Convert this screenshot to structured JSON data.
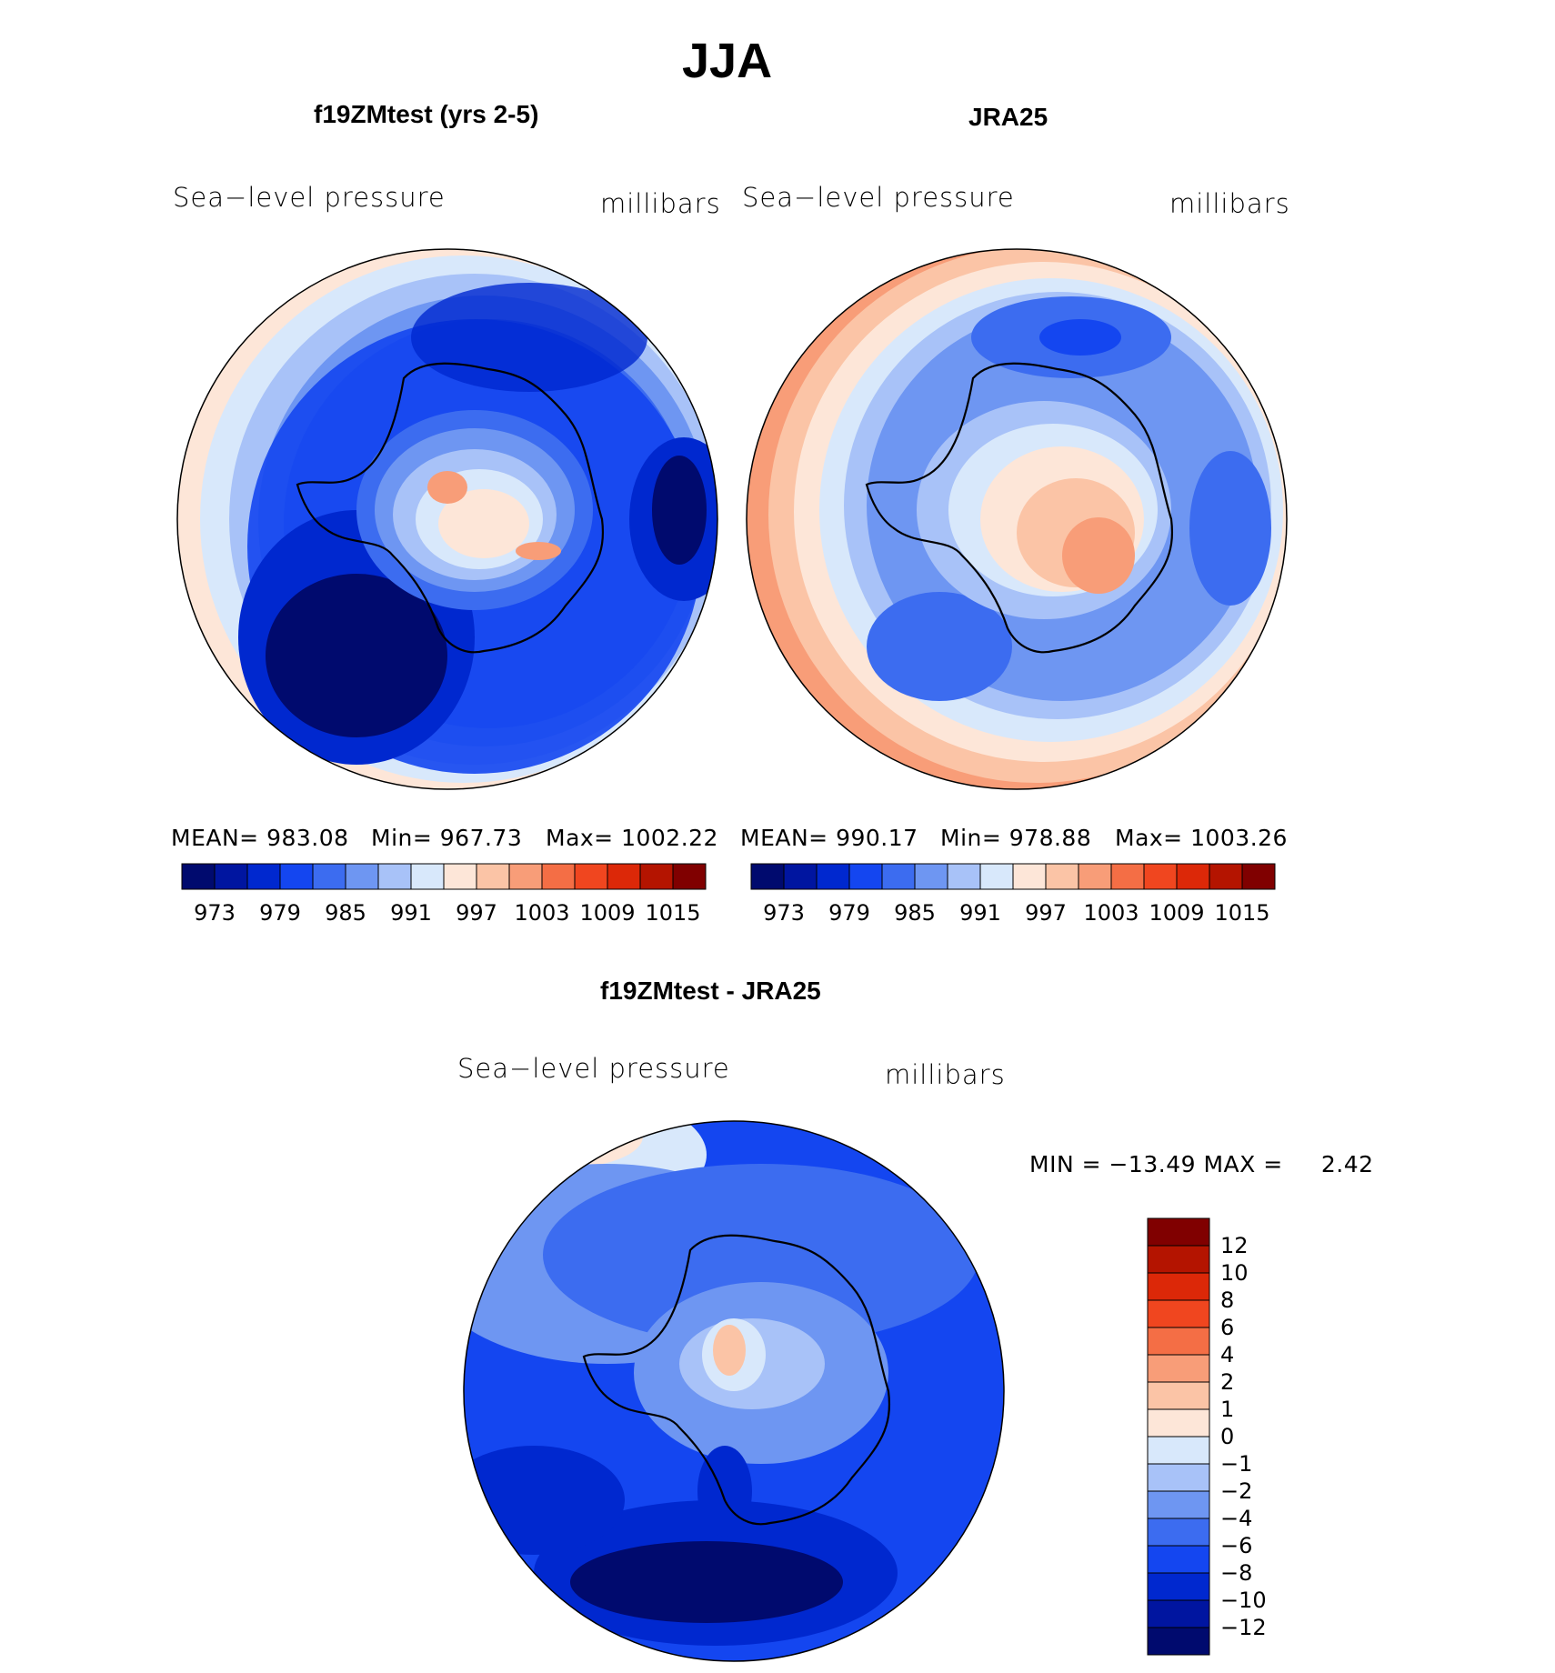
{
  "title": "JJA",
  "panels": [
    {
      "title": "f19ZMtest (yrs 2-5)",
      "var_label": "Sea−level pressure",
      "units": "millibars",
      "mean_text": "MEAN= 983.08",
      "min_text": "Min= 967.73",
      "max_text": "Max= 1002.22"
    },
    {
      "title": "JRA25",
      "var_label": "Sea−level pressure",
      "units": "millibars",
      "mean_text": "MEAN= 990.17",
      "min_text": "Min= 978.88",
      "max_text": "Max= 1003.26"
    }
  ],
  "diff_panel": {
    "title": "f19ZMtest - JRA25",
    "var_label": "Sea−level pressure",
    "units": "millibars",
    "minmax_text": "MIN = −13.49 MAX =     2.42"
  },
  "colorbar_main": {
    "colors": [
      "#000a6e",
      "#0015a0",
      "#0028cf",
      "#1446f0",
      "#3c6cf0",
      "#6e96f2",
      "#a8c2f8",
      "#d8e8fb",
      "#fde6d8",
      "#fbc4a6",
      "#f89d78",
      "#f46e45",
      "#f0461f",
      "#dc2808",
      "#b41400",
      "#800000"
    ],
    "labels": [
      "973",
      "979",
      "985",
      "991",
      "997",
      "1003",
      "1009",
      "1015"
    ]
  },
  "colorbar_diff": {
    "colors": [
      "#000a6e",
      "#0015a0",
      "#0028cf",
      "#1446f0",
      "#3c6cf0",
      "#6e96f2",
      "#a8c2f8",
      "#d8e8fb",
      "#fde6d8",
      "#fbc4a6",
      "#f89d78",
      "#f46e45",
      "#f0461f",
      "#dc2808",
      "#b41400",
      "#800000"
    ],
    "labels": [
      "12",
      "10",
      "8",
      "6",
      "4",
      "2",
      "1",
      "0",
      "−1",
      "−2",
      "−4",
      "−6",
      "−8",
      "−10",
      "−12"
    ]
  }
}
